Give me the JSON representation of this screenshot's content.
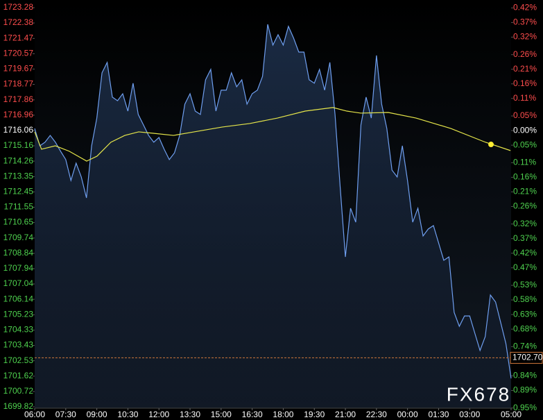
{
  "chart_data": {
    "type": "line",
    "x": [
      6,
      6.25,
      6.5,
      6.75,
      7,
      7.25,
      7.5,
      7.75,
      8,
      8.25,
      8.5,
      8.75,
      9,
      9.25,
      9.5,
      9.75,
      10,
      10.25,
      10.5,
      10.75,
      11,
      11.25,
      11.5,
      11.75,
      12,
      12.25,
      12.5,
      12.75,
      13,
      13.25,
      13.5,
      13.75,
      14,
      14.25,
      14.5,
      14.75,
      15,
      15.25,
      15.5,
      15.75,
      16,
      16.25,
      16.5,
      16.75,
      17,
      17.25,
      17.5,
      17.75,
      18,
      18.25,
      18.5,
      18.75,
      19,
      19.25,
      19.5,
      19.75,
      20,
      20.25,
      20.5,
      20.75,
      21,
      21.25,
      21.5,
      21.75,
      22,
      22.25,
      22.5,
      22.75,
      23,
      23.25,
      23.5,
      23.75,
      24,
      24.25,
      24.5,
      24.75,
      25,
      25.25,
      25.5,
      25.75,
      26,
      26.25,
      26.5,
      26.75,
      27,
      27.25,
      27.5,
      27.75,
      28,
      28.25,
      28.5,
      28.75,
      29
    ],
    "series": [
      {
        "color": "#6f9ff0",
        "values": [
          1716.18,
          1715.16,
          1715.37,
          1715.77,
          1715.37,
          1714.84,
          1714.35,
          1713.12,
          1714.14,
          1713.33,
          1712.1,
          1715.16,
          1716.79,
          1719.45,
          1720.06,
          1718.02,
          1717.81,
          1718.22,
          1717.2,
          1718.84,
          1717.0,
          1716.39,
          1715.77,
          1715.37,
          1715.65,
          1714.96,
          1714.35,
          1714.75,
          1715.77,
          1717.61,
          1718.22,
          1717.2,
          1717.0,
          1719.04,
          1719.65,
          1717.2,
          1718.43,
          1718.43,
          1719.45,
          1718.63,
          1719.04,
          1717.61,
          1718.22,
          1718.43,
          1719.24,
          1722.3,
          1721.08,
          1721.69,
          1721.08,
          1722.18,
          1721.49,
          1720.67,
          1720.67,
          1719.04,
          1718.84,
          1719.65,
          1718.43,
          1720.06,
          1717.0,
          1712.71,
          1708.63,
          1711.49,
          1710.67,
          1716.39,
          1718.02,
          1716.79,
          1720.47,
          1717.61,
          1716.18,
          1713.73,
          1713.33,
          1715.16,
          1713.12,
          1710.67,
          1711.49,
          1709.86,
          1710.27,
          1710.47,
          1709.45,
          1708.43,
          1708.63,
          1705.37,
          1704.55,
          1705.16,
          1705.16,
          1704.14,
          1703.13,
          1703.94,
          1706.39,
          1705.98,
          1704.76,
          1703.53,
          1701.49
        ]
      },
      {
        "color": "#e6e64a",
        "x": [
          6,
          6.33,
          7,
          7.67,
          8.51,
          9.01,
          9.68,
          10.35,
          11.02,
          11.69,
          12.7,
          13.7,
          15.04,
          16.38,
          17.72,
          19.06,
          20.4,
          21.07,
          21.74,
          23.07,
          24.41,
          26.09,
          27.76,
          28.97
        ],
        "values": [
          1715.98,
          1714.96,
          1715.16,
          1714.84,
          1714.26,
          1714.55,
          1715.37,
          1715.77,
          1715.98,
          1715.9,
          1715.77,
          1715.98,
          1716.26,
          1716.47,
          1716.79,
          1717.2,
          1717.41,
          1717.2,
          1717.08,
          1717.12,
          1716.79,
          1716.18,
          1715.37,
          1714.88
        ]
      }
    ],
    "marker": {
      "x": 28.03,
      "y": 1715.24,
      "color": "#ffee33"
    },
    "last_price": {
      "value": 1702.7,
      "label": "1702.70",
      "color": "#d0783c"
    },
    "xlim": [
      6,
      29
    ],
    "xticks": [
      {
        "value": 6,
        "label": "06:00"
      },
      {
        "value": 7.5,
        "label": "07:30"
      },
      {
        "value": 9,
        "label": "09:00"
      },
      {
        "value": 10.5,
        "label": "10:30"
      },
      {
        "value": 12,
        "label": "12:00"
      },
      {
        "value": 13.5,
        "label": "13:30"
      },
      {
        "value": 15,
        "label": "15:00"
      },
      {
        "value": 16.5,
        "label": "16:30"
      },
      {
        "value": 18,
        "label": "18:00"
      },
      {
        "value": 19.5,
        "label": "19:30"
      },
      {
        "value": 21,
        "label": "21:00"
      },
      {
        "value": 22.5,
        "label": "22:30"
      },
      {
        "value": 24,
        "label": "00:00"
      },
      {
        "value": 25.5,
        "label": "01:30"
      },
      {
        "value": 27,
        "label": "03:00"
      },
      {
        "value": 29,
        "label": "05:00"
      }
    ],
    "ylim": [
      1699.82,
      1723.28
    ],
    "yticks": [
      1723.28,
      1722.38,
      1721.47,
      1720.57,
      1719.67,
      1718.77,
      1717.86,
      1716.96,
      1716.06,
      1715.16,
      1714.26,
      1713.35,
      1712.45,
      1711.55,
      1710.65,
      1709.74,
      1708.84,
      1707.94,
      1707.04,
      1706.14,
      1705.23,
      1704.33,
      1703.43,
      1702.53,
      1701.62,
      1700.72,
      1699.82
    ],
    "y2lim": [
      -0.946,
      0.421
    ],
    "y2ticks": [
      {
        "value": 0.42,
        "label": "0.42%"
      },
      {
        "value": 0.37,
        "label": "0.37%"
      },
      {
        "value": 0.32,
        "label": "0.32%"
      },
      {
        "value": 0.26,
        "label": "0.26%"
      },
      {
        "value": 0.21,
        "label": "0.21%"
      },
      {
        "value": 0.16,
        "label": "0.16%"
      },
      {
        "value": 0.11,
        "label": "0.11%"
      },
      {
        "value": 0.05,
        "label": "0.05%"
      },
      {
        "value": 0,
        "label": "0.00%"
      },
      {
        "value": -0.05,
        "label": "0.05%"
      },
      {
        "value": -0.11,
        "label": "0.11%"
      },
      {
        "value": -0.16,
        "label": "0.16%"
      },
      {
        "value": -0.21,
        "label": "0.21%"
      },
      {
        "value": -0.26,
        "label": "0.26%"
      },
      {
        "value": -0.32,
        "label": "0.32%"
      },
      {
        "value": -0.37,
        "label": "0.37%"
      },
      {
        "value": -0.42,
        "label": "0.42%"
      },
      {
        "value": -0.47,
        "label": "0.47%"
      },
      {
        "value": -0.53,
        "label": "0.53%"
      },
      {
        "value": -0.58,
        "label": "0.58%"
      },
      {
        "value": -0.63,
        "label": "0.63%"
      },
      {
        "value": -0.68,
        "label": "0.68%"
      },
      {
        "value": -0.74,
        "label": "0.74%"
      },
      {
        "value": -0.79,
        "label": "0.79%"
      },
      {
        "value": -0.84,
        "label": "0.84%"
      },
      {
        "value": -0.89,
        "label": "0.89%"
      },
      {
        "value": -0.95,
        "label": "0.95%"
      }
    ],
    "up_color": "#ff4d4d",
    "down_color": "#4fd24f",
    "flat_color": "#ffffff",
    "watermark": "FX678"
  }
}
